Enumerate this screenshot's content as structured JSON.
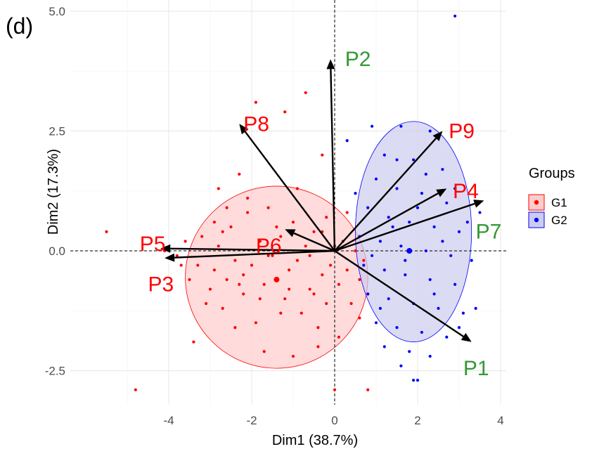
{
  "chart_data": {
    "type": "scatter",
    "panel_label": "(d)",
    "title": "",
    "xlabel": "Dim1 (38.7%)",
    "ylabel": "Dim2 (17.3%)",
    "xlim": [
      -5.5,
      4.2
    ],
    "ylim": [
      -3.2,
      5.0
    ],
    "xticks": [
      -4,
      -2,
      0,
      2,
      4
    ],
    "yticks": [
      -2.5,
      0.0,
      2.5,
      5.0
    ],
    "xtick_labels": [
      "-4",
      "-2",
      "0",
      "2",
      "4"
    ],
    "ytick_labels": [
      "-2.5",
      "0.0",
      "2.5",
      "5.0"
    ],
    "grid": true,
    "reference_lines": {
      "x": 0,
      "y": 0,
      "style": "dashed"
    },
    "legend": {
      "title": "Groups",
      "placement": "right"
    },
    "groups": [
      {
        "name": "G1",
        "color": "#ff0000",
        "fill": "#ffcccc",
        "ellipse": {
          "cx": -1.4,
          "cy": -0.55,
          "rx": 2.2,
          "ry": 1.9
        },
        "centroid": [
          -1.4,
          -0.6
        ],
        "points": [
          [
            -5.5,
            0.4
          ],
          [
            -4.8,
            -2.9
          ],
          [
            -4.1,
            0.0
          ],
          [
            -3.8,
            -0.1
          ],
          [
            -3.7,
            -0.3
          ],
          [
            -3.6,
            0.2
          ],
          [
            -3.4,
            -1.9
          ],
          [
            -3.3,
            -0.3
          ],
          [
            -3.2,
            0.3
          ],
          [
            -3.0,
            -0.8
          ],
          [
            -2.9,
            -0.4
          ],
          [
            -2.8,
            0.1
          ],
          [
            -2.7,
            -1.2
          ],
          [
            -2.6,
            -0.6
          ],
          [
            -2.5,
            0.5
          ],
          [
            -2.4,
            -0.2
          ],
          [
            -2.3,
            1.6
          ],
          [
            -2.2,
            -0.9
          ],
          [
            -2.1,
            0.8
          ],
          [
            -2.0,
            -0.3
          ],
          [
            -1.9,
            -1.5
          ],
          [
            -1.8,
            0.2
          ],
          [
            -1.7,
            -0.7
          ],
          [
            -1.6,
            0.9
          ],
          [
            -1.5,
            -0.1
          ],
          [
            -1.4,
            -0.6
          ],
          [
            -1.3,
            0.3
          ],
          [
            -1.2,
            -1.0
          ],
          [
            -1.1,
            -0.4
          ],
          [
            -1.0,
            0.6
          ],
          [
            -0.9,
            -0.2
          ],
          [
            -0.8,
            -1.3
          ],
          [
            -0.7,
            0.1
          ],
          [
            -0.6,
            -0.8
          ],
          [
            -0.5,
            0.4
          ],
          [
            -0.4,
            -1.6
          ],
          [
            -0.3,
            -0.5
          ],
          [
            -0.2,
            0.7
          ],
          [
            -0.1,
            -0.3
          ],
          [
            0.0,
            0.1
          ],
          [
            0.1,
            -0.7
          ],
          [
            0.2,
            0.2
          ],
          [
            0.3,
            -0.4
          ],
          [
            0.4,
            -1.1
          ],
          [
            0.5,
            0.0
          ],
          [
            0.6,
            -0.6
          ],
          [
            0.7,
            -0.2
          ],
          [
            0.8,
            -0.9
          ],
          [
            -1.9,
            3.1
          ],
          [
            -1.2,
            2.9
          ],
          [
            -0.3,
            2.0
          ],
          [
            -0.7,
            3.3
          ],
          [
            -2.6,
            0.9
          ],
          [
            -3.1,
            -1.1
          ],
          [
            -2.4,
            -1.6
          ],
          [
            -1.7,
            -2.1
          ],
          [
            -1.0,
            -2.2
          ],
          [
            -0.4,
            -2.0
          ],
          [
            0.0,
            -2.9
          ],
          [
            0.8,
            -2.9
          ],
          [
            -2.8,
            1.3
          ],
          [
            -2.1,
            1.1
          ],
          [
            -1.6,
            -0.1
          ],
          [
            -1.3,
            -1.3
          ],
          [
            -0.9,
            1.3
          ],
          [
            -0.5,
            -0.9
          ],
          [
            -0.2,
            -1.1
          ],
          [
            0.3,
            0.8
          ],
          [
            0.6,
            -1.4
          ],
          [
            -2.7,
            0.4
          ],
          [
            -2.2,
            -0.5
          ],
          [
            -1.8,
            -1.0
          ],
          [
            -1.4,
            0.5
          ],
          [
            -1.1,
            -0.8
          ],
          [
            -0.6,
            -0.1
          ],
          [
            -0.3,
            0.4
          ],
          [
            0.1,
            -1.8
          ],
          [
            -3.5,
            -0.6
          ],
          [
            -2.9,
            0.6
          ],
          [
            -2.3,
            -0.7
          ]
        ]
      },
      {
        "name": "G2",
        "color": "#0000ff",
        "fill": "#ccccee",
        "ellipse": {
          "cx": 1.9,
          "cy": 0.4,
          "rx": 1.4,
          "ry": 2.3
        },
        "centroid": [
          1.8,
          0.0
        ],
        "points": [
          [
            2.9,
            4.9
          ],
          [
            0.3,
            2.3
          ],
          [
            0.9,
            2.6
          ],
          [
            1.6,
            2.6
          ],
          [
            2.3,
            2.5
          ],
          [
            1.2,
            2.0
          ],
          [
            1.9,
            1.9
          ],
          [
            2.6,
            1.7
          ],
          [
            1.0,
            1.5
          ],
          [
            1.5,
            1.3
          ],
          [
            2.1,
            1.2
          ],
          [
            2.7,
            1.0
          ],
          [
            3.5,
            0.8
          ],
          [
            0.8,
            0.9
          ],
          [
            1.3,
            0.7
          ],
          [
            1.8,
            0.6
          ],
          [
            2.4,
            0.5
          ],
          [
            3.0,
            0.4
          ],
          [
            0.6,
            0.3
          ],
          [
            1.1,
            0.2
          ],
          [
            1.6,
            0.1
          ],
          [
            2.2,
            0.0
          ],
          [
            2.8,
            -0.1
          ],
          [
            3.3,
            -0.2
          ],
          [
            0.7,
            -0.3
          ],
          [
            1.2,
            -0.4
          ],
          [
            1.7,
            -0.5
          ],
          [
            2.3,
            -0.6
          ],
          [
            2.9,
            -0.7
          ],
          [
            0.8,
            -0.9
          ],
          [
            1.3,
            -1.0
          ],
          [
            1.9,
            -1.1
          ],
          [
            2.5,
            -1.2
          ],
          [
            3.1,
            -1.3
          ],
          [
            1.0,
            -1.5
          ],
          [
            1.5,
            -1.6
          ],
          [
            2.1,
            -1.7
          ],
          [
            2.7,
            -1.8
          ],
          [
            1.2,
            -2.0
          ],
          [
            1.8,
            -2.1
          ],
          [
            2.3,
            -2.2
          ],
          [
            1.6,
            -2.4
          ],
          [
            1.9,
            -2.7
          ],
          [
            2.0,
            -2.7
          ],
          [
            3.4,
            -1.2
          ],
          [
            0.5,
            1.2
          ],
          [
            0.9,
            -0.1
          ],
          [
            1.4,
            0.5
          ],
          [
            2.0,
            0.9
          ],
          [
            2.6,
            0.2
          ],
          [
            3.2,
            0.6
          ],
          [
            1.7,
            -0.2
          ],
          [
            2.4,
            -0.9
          ],
          [
            3.0,
            -1.6
          ],
          [
            1.1,
            -1.2
          ],
          [
            2.2,
            1.6
          ],
          [
            1.5,
            1.9
          ],
          [
            2.9,
            1.3
          ]
        ]
      }
    ],
    "vectors": [
      {
        "name": "P1",
        "x": 3.3,
        "y": -1.9,
        "label_color": "#339933",
        "label_x": 3.1,
        "label_y": -2.45
      },
      {
        "name": "P2",
        "x": -0.1,
        "y": 4.0,
        "label_color": "#339933",
        "label_x": 0.25,
        "label_y": 4.0
      },
      {
        "name": "P3",
        "x": -4.1,
        "y": -0.15,
        "label_color": "#ff0000",
        "label_x": -4.5,
        "label_y": -0.7
      },
      {
        "name": "P4",
        "x": 2.7,
        "y": 1.3,
        "label_color": "#ff0000",
        "label_x": 2.85,
        "label_y": 1.25
      },
      {
        "name": "P5",
        "x": -4.2,
        "y": 0.05,
        "label_color": "#ff0000",
        "label_x": -4.7,
        "label_y": 0.15
      },
      {
        "name": "P6",
        "x": -1.2,
        "y": 0.45,
        "label_color": "#ff0000",
        "label_x": -1.9,
        "label_y": 0.1
      },
      {
        "name": "P7",
        "x": 3.6,
        "y": 1.05,
        "label_color": "#339933",
        "label_x": 3.4,
        "label_y": 0.4
      },
      {
        "name": "P8",
        "x": -2.3,
        "y": 2.65,
        "label_color": "#ff0000",
        "label_x": -2.2,
        "label_y": 2.65
      },
      {
        "name": "P9",
        "x": 2.6,
        "y": 2.5,
        "label_color": "#ff0000",
        "label_x": 2.75,
        "label_y": 2.5
      }
    ]
  }
}
